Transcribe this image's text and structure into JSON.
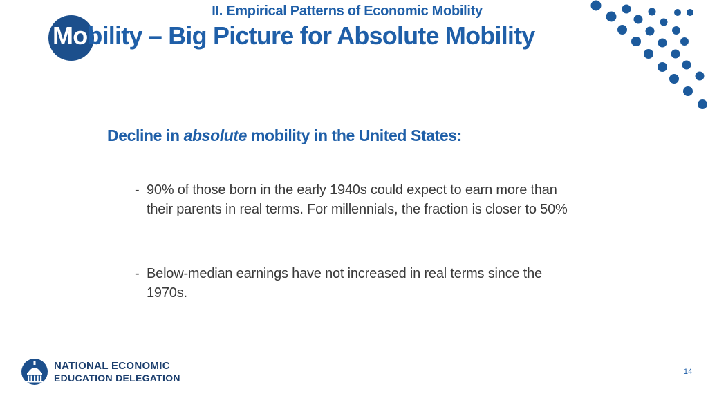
{
  "header": {
    "subtitle": "II. Empirical Patterns of Economic Mobility",
    "title_lead": "Mo",
    "title_rest": "bility – Big Picture for Absolute Mobility"
  },
  "content": {
    "heading_pre": "Decline in ",
    "heading_em": "absolute",
    "heading_post": " mobility in the United States:",
    "bullets": [
      {
        "dash": "-",
        "text": "90% of those born in the early 1940s could expect to earn more than their parents in real terms. For millennials, the fraction is closer to 50%"
      },
      {
        "dash": "-",
        "text": "Below-median earnings have not increased in real terms since the 1970s."
      }
    ]
  },
  "footer": {
    "logo_line1": "NATIONAL ECONOMIC",
    "logo_line2": "EDUCATION DELEGATION",
    "page_number": "14"
  },
  "colors": {
    "primary_blue": "#1f5fa8",
    "dark_blue": "#1c4f8c",
    "body_text": "#3a3a3a"
  }
}
